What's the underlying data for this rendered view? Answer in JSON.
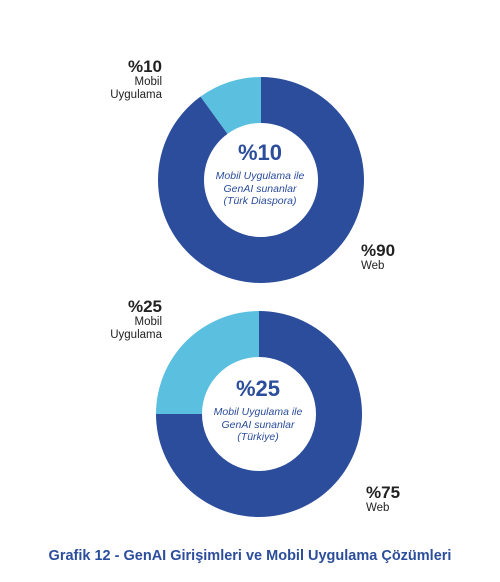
{
  "caption": "Grafik 12 - GenAI Girişimleri ve Mobil Uygulama Çözümleri",
  "colors": {
    "web": "#2b4d9c",
    "mobile": "#5bbfe0",
    "text": "#222222"
  },
  "chart_data": [
    {
      "type": "pie",
      "variant": "donut",
      "categories": [
        "Mobil Uygulama",
        "Web"
      ],
      "values": [
        10,
        90
      ],
      "labels": [
        {
          "pct": "%10",
          "name_lines": [
            "Mobil",
            "Uygulama"
          ]
        },
        {
          "pct": "%90",
          "name_lines": [
            "Web"
          ]
        }
      ],
      "center": {
        "pct": "%10",
        "desc_lines": [
          "Mobil Uygulama ile",
          "GenAI sunanlar",
          "(Türk Diaspora)"
        ]
      }
    },
    {
      "type": "pie",
      "variant": "donut",
      "categories": [
        "Mobil Uygulama",
        "Web"
      ],
      "values": [
        25,
        75
      ],
      "labels": [
        {
          "pct": "%25",
          "name_lines": [
            "Mobil",
            "Uygulama"
          ]
        },
        {
          "pct": "%75",
          "name_lines": [
            "Web"
          ]
        }
      ],
      "center": {
        "pct": "%25",
        "desc_lines": [
          "Mobil Uygulama ile",
          "GenAI sunanlar",
          "(Türkiye)"
        ]
      }
    }
  ]
}
